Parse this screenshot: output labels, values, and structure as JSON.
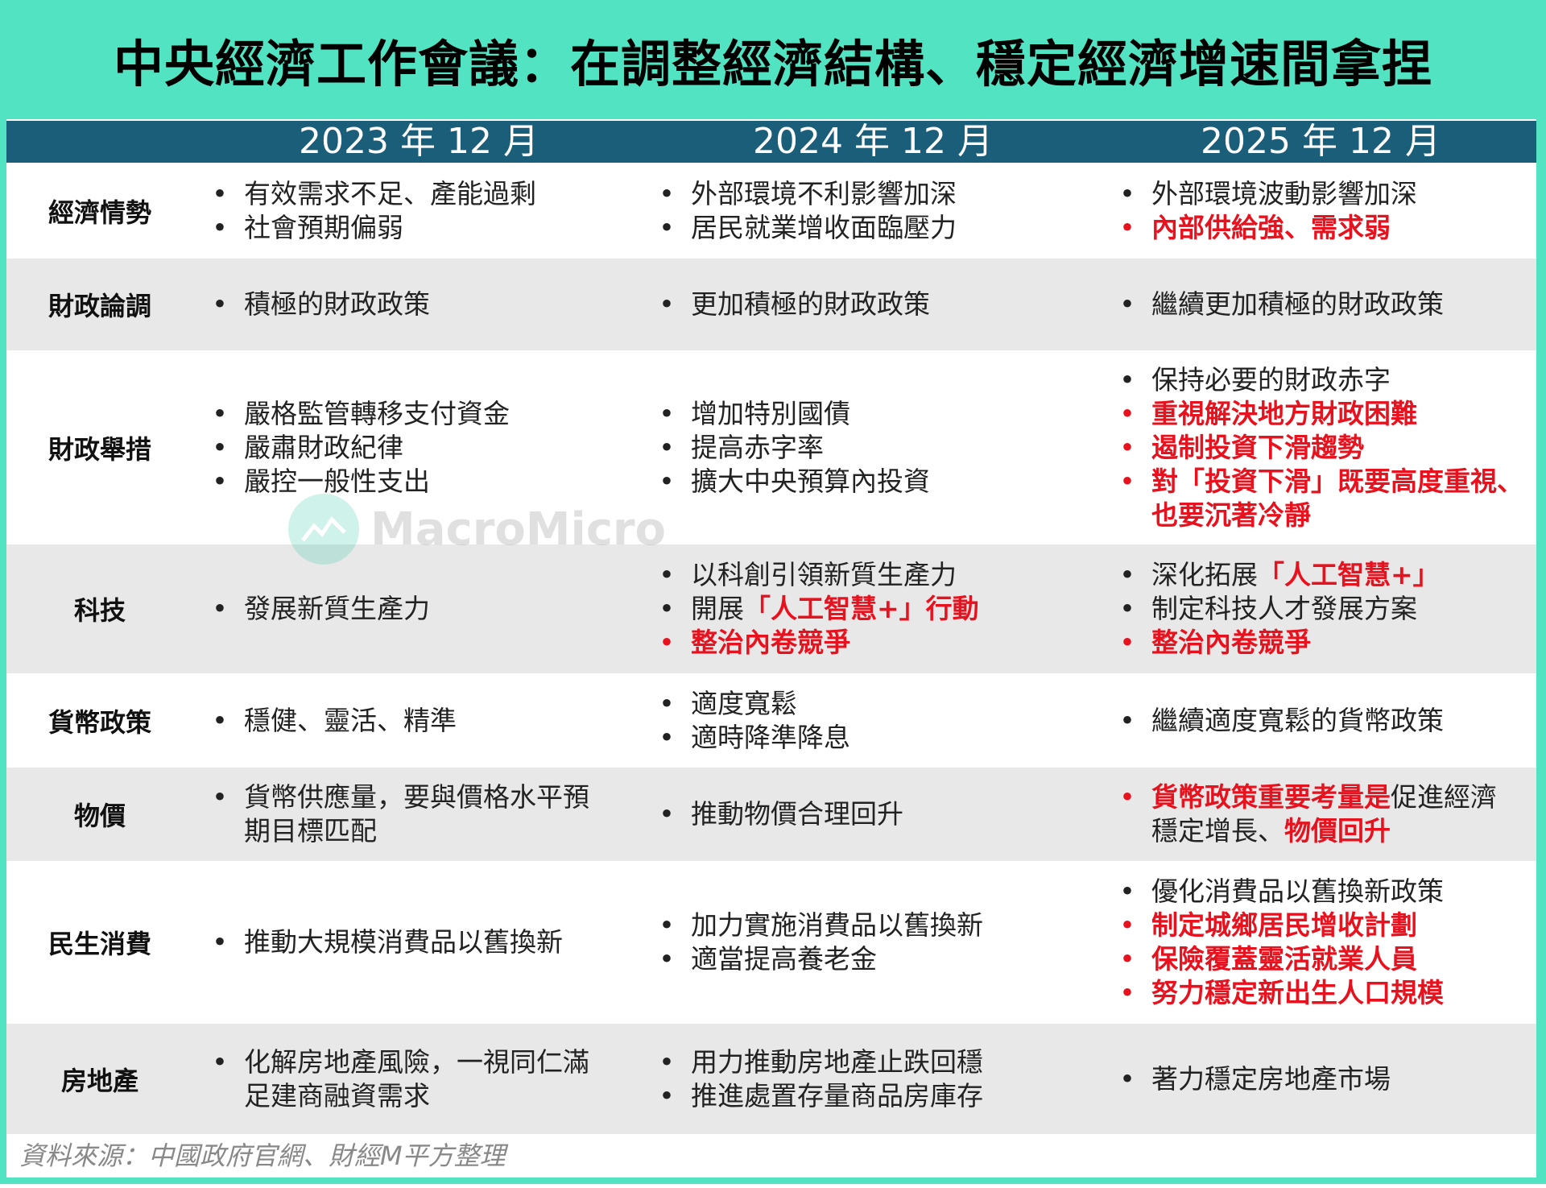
{
  "title": "中央經濟工作會議：在調整經濟結構、穩定經濟增速間拿捏",
  "colors": {
    "frame": "#52e3c2",
    "header": "#1a5e7a",
    "highlight": "#e8121e",
    "row_alt": "#e8e8e8"
  },
  "columns": [
    "2023 年 12 月",
    "2024 年 12 月",
    "2025 年 12 月"
  ],
  "rows": [
    {
      "label": "經濟情勢",
      "cols": [
        [
          {
            "b": 1,
            "parts": [
              {
                "t": "有效需求不足、產能過剩"
              }
            ]
          },
          {
            "b": 1,
            "parts": [
              {
                "t": "社會預期偏弱"
              }
            ]
          }
        ],
        [
          {
            "b": 1,
            "parts": [
              {
                "t": "外部環境不利影響加深"
              }
            ]
          },
          {
            "b": 1,
            "parts": [
              {
                "t": "居民就業增收面臨壓力"
              }
            ]
          }
        ],
        [
          {
            "b": 1,
            "parts": [
              {
                "t": "外部環境波動影響加深"
              }
            ]
          },
          {
            "b": 1,
            "rb": 1,
            "parts": [
              {
                "t": "內部供給強、需求弱",
                "r": 1
              }
            ]
          }
        ]
      ]
    },
    {
      "label": "財政論調",
      "cols": [
        [
          {
            "b": 1,
            "parts": [
              {
                "t": "積極的財政政策"
              }
            ]
          }
        ],
        [
          {
            "b": 1,
            "parts": [
              {
                "t": "更加積極的財政政策"
              }
            ]
          }
        ],
        [
          {
            "b": 1,
            "parts": [
              {
                "t": "繼續更加積極的財政政策"
              }
            ]
          }
        ]
      ]
    },
    {
      "label": "財政舉措",
      "cols": [
        [
          {
            "b": 1,
            "parts": [
              {
                "t": "嚴格監管轉移支付資金"
              }
            ]
          },
          {
            "b": 1,
            "parts": [
              {
                "t": "嚴肅財政紀律"
              }
            ]
          },
          {
            "b": 1,
            "parts": [
              {
                "t": "嚴控一般性支出"
              }
            ]
          }
        ],
        [
          {
            "b": 1,
            "parts": [
              {
                "t": "增加特別國債"
              }
            ]
          },
          {
            "b": 1,
            "parts": [
              {
                "t": "提高赤字率"
              }
            ]
          },
          {
            "b": 1,
            "parts": [
              {
                "t": "擴大中央預算內投資"
              }
            ]
          }
        ],
        [
          {
            "b": 1,
            "parts": [
              {
                "t": "保持必要的財政赤字"
              }
            ]
          },
          {
            "b": 1,
            "rb": 1,
            "parts": [
              {
                "t": "重視解決地方財政困難",
                "r": 1
              }
            ]
          },
          {
            "b": 1,
            "rb": 1,
            "parts": [
              {
                "t": "遏制投資下滑趨勢",
                "r": 1
              }
            ]
          },
          {
            "b": 1,
            "rb": 1,
            "parts": [
              {
                "t": "對「投資下滑」既要高度重視、",
                "r": 1
              }
            ]
          },
          {
            "b": 0,
            "parts": [
              {
                "t": "也要沉著冷靜",
                "r": 1
              }
            ]
          }
        ]
      ]
    },
    {
      "label": "科技",
      "cols": [
        [
          {
            "b": 1,
            "parts": [
              {
                "t": "發展新質生產力"
              }
            ]
          }
        ],
        [
          {
            "b": 1,
            "parts": [
              {
                "t": "以科創引領新質生產力"
              }
            ]
          },
          {
            "b": 1,
            "parts": [
              {
                "t": "開展"
              },
              {
                "t": "「人工智慧+」行動",
                "r": 1
              }
            ]
          },
          {
            "b": 1,
            "rb": 1,
            "parts": [
              {
                "t": "整治內卷競爭",
                "r": 1
              }
            ]
          }
        ],
        [
          {
            "b": 1,
            "parts": [
              {
                "t": "深化拓展"
              },
              {
                "t": "「人工智慧+」",
                "r": 1
              }
            ]
          },
          {
            "b": 1,
            "parts": [
              {
                "t": "制定科技人才發展方案"
              }
            ]
          },
          {
            "b": 1,
            "rb": 1,
            "parts": [
              {
                "t": "整治內卷競爭",
                "r": 1
              }
            ]
          }
        ]
      ]
    },
    {
      "label": "貨幣政策",
      "cols": [
        [
          {
            "b": 1,
            "parts": [
              {
                "t": "穩健、靈活、精準"
              }
            ]
          }
        ],
        [
          {
            "b": 1,
            "parts": [
              {
                "t": "適度寬鬆"
              }
            ]
          },
          {
            "b": 1,
            "parts": [
              {
                "t": "適時降準降息"
              }
            ]
          }
        ],
        [
          {
            "b": 1,
            "parts": [
              {
                "t": "繼續適度寬鬆的貨幣政策"
              }
            ]
          }
        ]
      ]
    },
    {
      "label": "物價",
      "cols": [
        [
          {
            "b": 1,
            "parts": [
              {
                "t": "貨幣供應量，要與價格水平預"
              }
            ]
          },
          {
            "b": 0,
            "parts": [
              {
                "t": "期目標匹配"
              }
            ]
          }
        ],
        [
          {
            "b": 1,
            "parts": [
              {
                "t": "推動物價合理回升"
              }
            ]
          }
        ],
        [
          {
            "b": 1,
            "rb": 1,
            "parts": [
              {
                "t": "貨幣政策重要考量是",
                "r": 1
              },
              {
                "t": "促進經濟"
              }
            ]
          },
          {
            "b": 0,
            "parts": [
              {
                "t": "穩定增長、"
              },
              {
                "t": "物價回升",
                "r": 1
              }
            ]
          }
        ]
      ]
    },
    {
      "label": "民生消費",
      "cols": [
        [
          {
            "b": 1,
            "parts": [
              {
                "t": "推動大規模消費品以舊換新"
              }
            ]
          }
        ],
        [
          {
            "b": 1,
            "parts": [
              {
                "t": "加力實施消費品以舊換新"
              }
            ]
          },
          {
            "b": 1,
            "parts": [
              {
                "t": "適當提高養老金"
              }
            ]
          }
        ],
        [
          {
            "b": 1,
            "parts": [
              {
                "t": "優化消費品以舊換新政策"
              }
            ]
          },
          {
            "b": 1,
            "rb": 1,
            "parts": [
              {
                "t": "制定城鄉居民增收計劃",
                "r": 1
              }
            ]
          },
          {
            "b": 1,
            "rb": 1,
            "parts": [
              {
                "t": "保險覆蓋靈活就業人員",
                "r": 1
              }
            ]
          },
          {
            "b": 1,
            "rb": 1,
            "parts": [
              {
                "t": "努力穩定新出生人口規模",
                "r": 1
              }
            ]
          }
        ]
      ]
    },
    {
      "label": "房地產",
      "cols": [
        [
          {
            "b": 1,
            "parts": [
              {
                "t": "化解房地產風險，一視同仁滿"
              }
            ]
          },
          {
            "b": 0,
            "parts": [
              {
                "t": "足建商融資需求"
              }
            ]
          }
        ],
        [
          {
            "b": 1,
            "parts": [
              {
                "t": "用力推動房地產止跌回穩"
              }
            ]
          },
          {
            "b": 1,
            "parts": [
              {
                "t": "推進處置存量商品房庫存"
              }
            ]
          }
        ],
        [
          {
            "b": 1,
            "parts": [
              {
                "t": "著力穩定房地產市場"
              }
            ]
          }
        ]
      ]
    }
  ],
  "bullet_char": "•",
  "footer": "資料來源：中國政府官網、財經M平方整理",
  "watermark": "MacroMicro"
}
